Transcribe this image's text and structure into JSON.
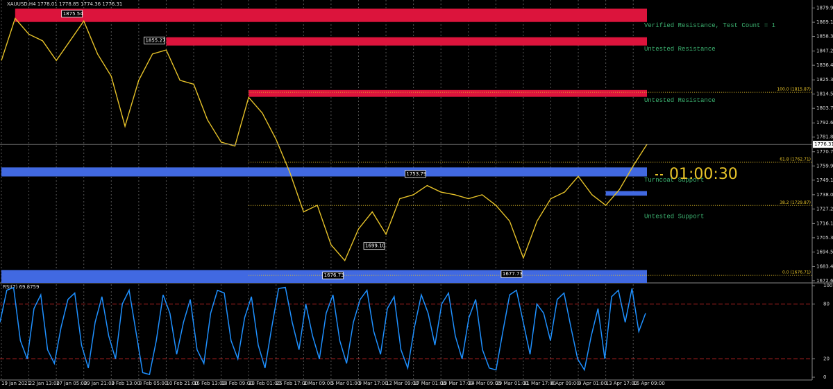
{
  "chart_data": [
    {
      "type": "line",
      "title": "XAUUSD,H4 1778.01 1778.85 1774.36 1776.31",
      "categories": [
        "19 Jan 2021",
        null,
        "22 Jan 13:00",
        null,
        "27 Jan 05:00",
        null,
        "29 Jan 21:00",
        null,
        "3 Feb 13:00",
        null,
        "8 Feb 05:00",
        null,
        "10 Feb 21:00",
        null,
        "15 Feb 13:00",
        null,
        "18 Feb 09:00",
        null,
        "23 Feb 01:00",
        null,
        "25 Feb 17:00",
        null,
        "2 Mar 09:00",
        null,
        "5 Mar 01:00",
        null,
        "9 Mar 17:00",
        null,
        "12 Mar 09:00",
        null,
        "17 Mar 01:00",
        null,
        "19 Mar 17:00",
        null,
        "24 Mar 09:00",
        null,
        "29 Mar 01:00",
        null,
        "31 Mar 17:00",
        null,
        "6 Apr 09:00",
        null,
        "9 Apr 01:00",
        null,
        "13 Apr 17:00",
        null,
        "16 Apr 09:00",
        null
      ],
      "values": [
        1840,
        1872,
        1860,
        1855,
        1840,
        1855,
        1870,
        1845,
        1828,
        1790,
        1825,
        1845,
        1848,
        1825,
        1822,
        1795,
        1778,
        1775,
        1812,
        1800,
        1780,
        1755,
        1725,
        1730,
        1700,
        1688,
        1712,
        1725,
        1708,
        1735,
        1738,
        1745,
        1740,
        1738,
        1735,
        1738,
        1730,
        1718,
        1690,
        1718,
        1735,
        1740,
        1752,
        1738,
        1730,
        1742,
        1760,
        1776.31
      ],
      "color": "#e6c229",
      "ylim": [
        1671.0,
        1886.0
      ],
      "yticks": [
        {
          "value": 1879.9,
          "label": "1879.90"
        },
        {
          "value": 1869.1,
          "label": "1869.10"
        },
        {
          "value": 1858.3,
          "label": "1858.30"
        },
        {
          "value": 1847.2,
          "label": "1847.20"
        },
        {
          "value": 1836.4,
          "label": "1836.40"
        },
        {
          "value": 1825.3,
          "label": "1825.30"
        },
        {
          "value": 1814.5,
          "label": "1814.50"
        },
        {
          "value": 1803.7,
          "label": "1803.70"
        },
        {
          "value": 1792.6,
          "label": "1792.60"
        },
        {
          "value": 1781.8,
          "label": "1781.80"
        },
        {
          "value": 1770.7,
          "label": "1770.70"
        },
        {
          "value": 1759.9,
          "label": "1759.90"
        },
        {
          "value": 1749.1,
          "label": "1749.10"
        },
        {
          "value": 1738.0,
          "label": "1738.00"
        },
        {
          "value": 1727.2,
          "label": "1727.20"
        },
        {
          "value": 1716.1,
          "label": "1716.10"
        },
        {
          "value": 1705.3,
          "label": "1705.30"
        },
        {
          "value": 1694.5,
          "label": "1694.50"
        },
        {
          "value": 1683.4,
          "label": "1683.40"
        },
        {
          "value": 1672.6,
          "label": "1672.60"
        }
      ],
      "last_price": 1776.31,
      "timer": "01:00:30",
      "zones": [
        {
          "label": "Verified Resistance, Test Count = 1",
          "range": [
            1869.3,
            1879.4
          ],
          "start": 1,
          "color": "#dc143c"
        },
        {
          "label": "Untested Resistance",
          "range": [
            1851.4,
            1857.7
          ],
          "start": 12,
          "color": "#dc143c"
        },
        {
          "label": "Untested Resistance",
          "range": [
            1812.4,
            1817.6
          ],
          "start": 18,
          "color": "#dc143c"
        },
        {
          "label": "Turncoat Support",
          "range": [
            1751.9,
            1758.8
          ],
          "start": 0,
          "color": "#4169e1"
        },
        {
          "label": "Untested Support",
          "range": [
            1737.3,
            1740.8
          ],
          "start": 44,
          "color": "#4169e1"
        },
        {
          "range": [
            1671.0,
            1680.8
          ],
          "start": 0,
          "color": "#4169e1"
        }
      ],
      "fib_levels": [
        {
          "label": "100.0 (1815.87)",
          "value": 1815.87
        },
        {
          "label": "61.8 (1762.71)",
          "value": 1762.71
        },
        {
          "label": "38.2 (1729.87)",
          "value": 1729.87
        },
        {
          "label": "0.0 (1676.71)",
          "value": 1676.71
        }
      ],
      "swings": [
        {
          "label": "1875.54",
          "value": 1875.54,
          "index": 6
        },
        {
          "label": "1855.27",
          "value": 1855.27,
          "index": 12
        },
        {
          "label": "1676.73",
          "value": 1676.73,
          "index": 25
        },
        {
          "label": "1699.10",
          "value": 1699.1,
          "index": 28
        },
        {
          "label": "1753.79",
          "value": 1753.79,
          "index": 31
        },
        {
          "label": "1677.73",
          "value": 1677.73,
          "index": 38
        }
      ]
    },
    {
      "type": "line",
      "title": "RSI(7) 69.8759",
      "values": [
        60,
        95,
        98,
        40,
        20,
        75,
        90,
        30,
        15,
        55,
        85,
        92,
        35,
        10,
        60,
        88,
        45,
        20,
        80,
        95,
        50,
        5,
        3,
        40,
        90,
        70,
        25,
        60,
        85,
        30,
        15,
        70,
        95,
        92,
        40,
        20,
        65,
        88,
        35,
        10,
        55,
        97,
        98,
        60,
        30,
        80,
        45,
        20,
        70,
        90,
        40,
        15,
        60,
        85,
        95,
        50,
        25,
        75,
        88,
        30,
        10,
        55,
        90,
        70,
        35,
        80,
        92,
        45,
        20,
        65,
        85,
        30,
        10,
        8,
        50,
        90,
        95,
        60,
        25,
        80,
        70,
        40,
        85,
        92,
        55,
        20,
        8,
        45,
        75,
        20,
        88,
        95,
        60,
        97,
        50,
        69.8759
      ],
      "color": "#1e90ff",
      "ylim": [
        0,
        100
      ],
      "yticks": [
        0,
        20,
        80,
        100
      ],
      "levels": [
        20,
        80
      ],
      "level_color": "#b22222"
    }
  ]
}
